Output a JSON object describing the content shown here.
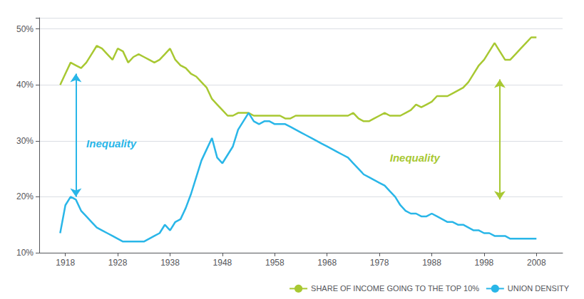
{
  "chart_data": {
    "type": "line",
    "x": [
      1917,
      1918,
      1919,
      1920,
      1921,
      1922,
      1923,
      1924,
      1925,
      1926,
      1927,
      1928,
      1929,
      1930,
      1931,
      1932,
      1933,
      1934,
      1935,
      1936,
      1937,
      1938,
      1939,
      1940,
      1941,
      1942,
      1943,
      1944,
      1945,
      1946,
      1947,
      1948,
      1949,
      1950,
      1951,
      1952,
      1953,
      1954,
      1955,
      1956,
      1957,
      1958,
      1959,
      1960,
      1961,
      1962,
      1963,
      1964,
      1965,
      1966,
      1967,
      1968,
      1969,
      1970,
      1971,
      1972,
      1973,
      1974,
      1975,
      1976,
      1977,
      1978,
      1979,
      1980,
      1981,
      1982,
      1983,
      1984,
      1985,
      1986,
      1987,
      1988,
      1989,
      1990,
      1991,
      1992,
      1993,
      1994,
      1995,
      1996,
      1997,
      1998,
      1999,
      2000,
      2001,
      2002,
      2003,
      2004,
      2005,
      2006,
      2007,
      2008
    ],
    "xlim": [
      1913,
      2013
    ],
    "xticks": [
      1918,
      1928,
      1938,
      1948,
      1958,
      1968,
      1978,
      1988,
      1998,
      2008
    ],
    "ylim": [
      10,
      52
    ],
    "yticks": [
      {
        "value": 10,
        "label": "10%"
      },
      {
        "value": 20,
        "label": "20%"
      },
      {
        "value": 30,
        "label": "30%"
      },
      {
        "value": 40,
        "label": "40%"
      },
      {
        "value": 50,
        "label": "50%"
      }
    ],
    "grid": true,
    "legend": "lower right",
    "series": [
      {
        "name": "SHARE OF INCOME GOING TO THE TOP 10%",
        "color": "#a8c832",
        "values": [
          40.0,
          42.0,
          44.0,
          43.5,
          43.0,
          44.0,
          45.5,
          47.0,
          46.5,
          45.5,
          44.5,
          46.5,
          46.0,
          44.0,
          45.0,
          45.5,
          45.0,
          44.5,
          44.0,
          44.5,
          45.5,
          46.5,
          44.5,
          43.5,
          43.0,
          42.0,
          41.5,
          40.5,
          39.5,
          37.5,
          36.5,
          35.5,
          34.5,
          34.5,
          35.0,
          35.0,
          35.0,
          34.5,
          34.5,
          34.5,
          34.5,
          34.5,
          34.5,
          34.0,
          34.0,
          34.5,
          34.5,
          34.5,
          34.5,
          34.5,
          34.5,
          34.5,
          34.5,
          34.5,
          34.5,
          34.5,
          35.0,
          34.0,
          33.5,
          33.5,
          34.0,
          34.5,
          35.0,
          34.5,
          34.5,
          34.5,
          35.0,
          35.5,
          36.5,
          36.0,
          36.5,
          37.0,
          38.0,
          38.0,
          38.0,
          38.5,
          39.0,
          39.5,
          40.5,
          42.0,
          43.5,
          44.5,
          46.0,
          47.5,
          46.0,
          44.5,
          44.5,
          45.5,
          46.5,
          47.5,
          48.5,
          48.5
        ]
      },
      {
        "name": "UNION DENSITY",
        "color": "#29b6e8",
        "values": [
          13.5,
          18.5,
          20.0,
          19.5,
          17.5,
          16.5,
          15.5,
          14.5,
          14.0,
          13.5,
          13.0,
          12.5,
          12.0,
          12.0,
          12.0,
          12.0,
          12.0,
          12.5,
          13.0,
          13.5,
          15.0,
          14.0,
          15.5,
          16.0,
          18.0,
          20.5,
          23.5,
          26.5,
          28.5,
          30.5,
          27.0,
          26.0,
          27.5,
          29.0,
          32.0,
          33.5,
          35.0,
          33.5,
          33.0,
          33.5,
          33.5,
          33.0,
          33.0,
          33.0,
          32.5,
          32.0,
          31.5,
          31.0,
          30.5,
          30.0,
          29.5,
          29.0,
          28.5,
          28.0,
          27.5,
          27.0,
          26.0,
          25.0,
          24.0,
          23.5,
          23.0,
          22.5,
          22.0,
          21.0,
          20.0,
          18.5,
          17.5,
          17.0,
          17.0,
          16.5,
          16.5,
          17.0,
          16.5,
          16.0,
          15.5,
          15.5,
          15.0,
          15.0,
          14.5,
          14.0,
          14.0,
          13.5,
          13.5,
          13.0,
          13.0,
          13.0,
          12.5,
          12.5,
          12.5,
          12.5,
          12.5,
          12.5
        ]
      }
    ],
    "annotations": [
      {
        "text": "Inequality",
        "x": 1922,
        "y": 29.5,
        "color": "#29b6e8",
        "arrow": {
          "x": 1920,
          "y_top": 42.0,
          "y_bottom": 20.0
        }
      },
      {
        "text": "Inequality",
        "x": 1980,
        "y": 27.0,
        "color": "#a8c832",
        "arrow": {
          "x": 2001,
          "y_top": 41.0,
          "y_bottom": 19.5
        }
      }
    ]
  }
}
